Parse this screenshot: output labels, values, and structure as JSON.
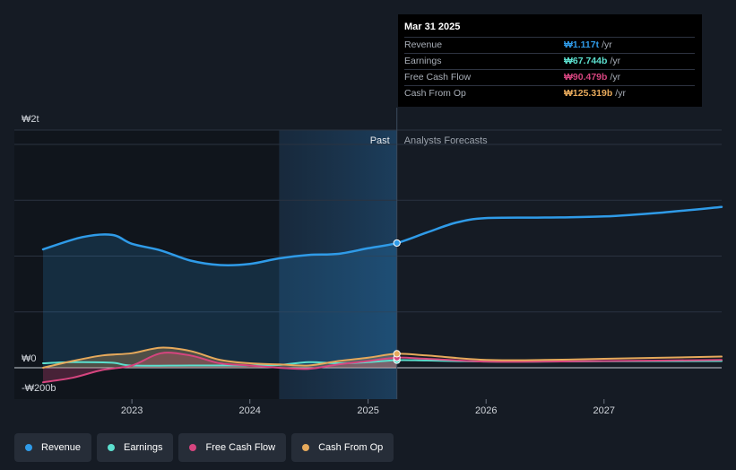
{
  "chart_data": {
    "type": "line",
    "currency_prefix": "₩",
    "y_axis": {
      "labels": [
        {
          "value": 2000,
          "text": "₩2t"
        },
        {
          "value": 0,
          "text": "₩0"
        },
        {
          "value": -200,
          "text": "-₩200b"
        }
      ],
      "range": [
        -200,
        2000
      ],
      "gridlines": [
        0,
        500,
        1000,
        1500,
        2000
      ]
    },
    "x_axis": {
      "ticks": [
        "2023",
        "2024",
        "2025",
        "2026",
        "2027"
      ],
      "range": [
        "2022-04-01",
        "2027-12-31"
      ]
    },
    "past_label": "Past",
    "forecast_label": "Analysts Forecasts",
    "divider_date": "2025-03-31",
    "past_shade_start": "2024-04-01",
    "series": [
      {
        "name": "Revenue",
        "color": "#2f9be8",
        "fill": true,
        "points": [
          [
            "2022-04-01",
            1060
          ],
          [
            "2022-08-01",
            1170
          ],
          [
            "2022-11-01",
            1190
          ],
          [
            "2023-01-01",
            1110
          ],
          [
            "2023-04-01",
            1050
          ],
          [
            "2023-07-01",
            960
          ],
          [
            "2023-10-01",
            920
          ],
          [
            "2024-01-01",
            930
          ],
          [
            "2024-04-01",
            980
          ],
          [
            "2024-07-01",
            1010
          ],
          [
            "2024-10-01",
            1020
          ],
          [
            "2025-01-01",
            1070
          ],
          [
            "2025-03-31",
            1117
          ],
          [
            "2025-07-01",
            1210
          ],
          [
            "2025-10-01",
            1300
          ],
          [
            "2026-01-01",
            1340
          ],
          [
            "2026-07-01",
            1345
          ],
          [
            "2027-01-01",
            1355
          ],
          [
            "2027-07-01",
            1390
          ],
          [
            "2027-12-31",
            1440
          ]
        ]
      },
      {
        "name": "Earnings",
        "color": "#5ce0cf",
        "fill": false,
        "points": [
          [
            "2022-04-01",
            40
          ],
          [
            "2022-07-01",
            50
          ],
          [
            "2022-11-01",
            45
          ],
          [
            "2023-01-01",
            20
          ],
          [
            "2023-07-01",
            20
          ],
          [
            "2024-01-01",
            20
          ],
          [
            "2024-04-01",
            25
          ],
          [
            "2024-07-01",
            50
          ],
          [
            "2024-10-01",
            40
          ],
          [
            "2025-01-01",
            50
          ],
          [
            "2025-03-31",
            67.744
          ],
          [
            "2025-07-01",
            65
          ],
          [
            "2026-01-01",
            55
          ],
          [
            "2026-07-01",
            55
          ],
          [
            "2027-01-01",
            58
          ],
          [
            "2027-12-31",
            60
          ]
        ]
      },
      {
        "name": "Free Cash Flow",
        "color": "#d6457f",
        "fill": true,
        "points": [
          [
            "2022-04-01",
            -130
          ],
          [
            "2022-07-01",
            -90
          ],
          [
            "2022-10-01",
            -20
          ],
          [
            "2023-01-01",
            20
          ],
          [
            "2023-04-01",
            130
          ],
          [
            "2023-07-01",
            110
          ],
          [
            "2023-10-01",
            40
          ],
          [
            "2024-01-01",
            20
          ],
          [
            "2024-04-01",
            0
          ],
          [
            "2024-07-01",
            -10
          ],
          [
            "2024-10-01",
            30
          ],
          [
            "2025-01-01",
            60
          ],
          [
            "2025-03-31",
            90.479
          ],
          [
            "2025-07-01",
            80
          ],
          [
            "2026-01-01",
            55
          ],
          [
            "2026-07-01",
            55
          ],
          [
            "2027-01-01",
            60
          ],
          [
            "2027-12-31",
            70
          ]
        ]
      },
      {
        "name": "Cash From Op",
        "color": "#e6a95b",
        "fill": true,
        "points": [
          [
            "2022-04-01",
            0
          ],
          [
            "2022-07-01",
            60
          ],
          [
            "2022-10-01",
            110
          ],
          [
            "2023-01-01",
            130
          ],
          [
            "2023-04-01",
            180
          ],
          [
            "2023-07-01",
            150
          ],
          [
            "2023-10-01",
            70
          ],
          [
            "2024-01-01",
            40
          ],
          [
            "2024-04-01",
            30
          ],
          [
            "2024-07-01",
            20
          ],
          [
            "2024-10-01",
            60
          ],
          [
            "2025-01-01",
            90
          ],
          [
            "2025-03-31",
            125.319
          ],
          [
            "2025-07-01",
            110
          ],
          [
            "2026-01-01",
            70
          ],
          [
            "2026-07-01",
            70
          ],
          [
            "2027-01-01",
            80
          ],
          [
            "2027-12-31",
            100
          ]
        ]
      }
    ]
  },
  "tooltip": {
    "date": "Mar 31 2025",
    "unit": "/yr",
    "rows": [
      {
        "label": "Revenue",
        "value": "₩1.117t",
        "color": "#2f9be8"
      },
      {
        "label": "Earnings",
        "value": "₩67.744b",
        "color": "#5ce0cf"
      },
      {
        "label": "Free Cash Flow",
        "value": "₩90.479b",
        "color": "#d6457f"
      },
      {
        "label": "Cash From Op",
        "value": "₩125.319b",
        "color": "#e6a95b"
      }
    ]
  },
  "legend": [
    {
      "label": "Revenue",
      "color": "#2f9be8"
    },
    {
      "label": "Earnings",
      "color": "#5ce0cf"
    },
    {
      "label": "Free Cash Flow",
      "color": "#d6457f"
    },
    {
      "label": "Cash From Op",
      "color": "#e6a95b"
    }
  ]
}
